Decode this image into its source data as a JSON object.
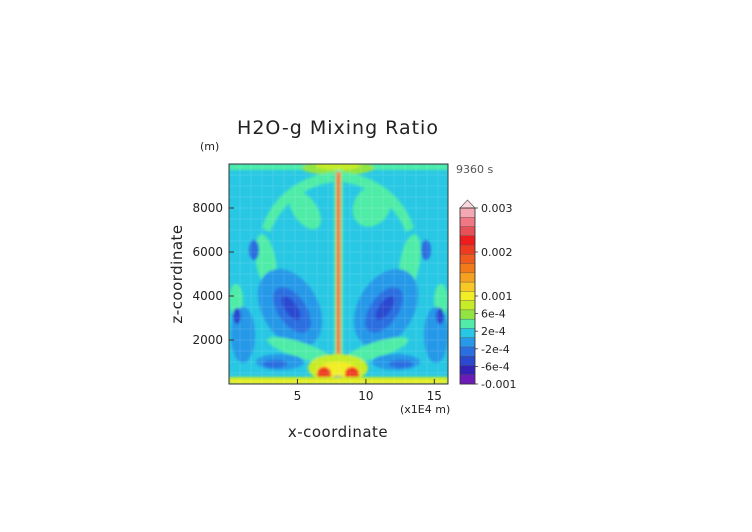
{
  "chart_data": {
    "type": "heatmap",
    "title": "H2O-g Mixing Ratio",
    "time_label": "9360 s",
    "xlabel": "x-coordinate",
    "ylabel": "z-coordinate",
    "x_unit": "(x1E4 m)",
    "y_unit": "(m)",
    "xlim": [
      0,
      16
    ],
    "ylim": [
      0,
      10000
    ],
    "x_ticks": [
      5,
      10,
      15
    ],
    "y_ticks": [
      2000,
      4000,
      6000,
      8000
    ],
    "colorbar": {
      "labels": [
        {
          "text": "0.003",
          "value": 0.003
        },
        {
          "text": "0.002",
          "value": 0.002
        },
        {
          "text": "0.001",
          "value": 0.001
        },
        {
          "text": "6e-4",
          "value": 0.0006
        },
        {
          "text": "2e-4",
          "value": 0.0002
        },
        {
          "text": "-2e-4",
          "value": -0.0002
        },
        {
          "text": "-6e-4",
          "value": -0.0006
        },
        {
          "text": "-0.001",
          "value": -0.001
        }
      ],
      "levels": [
        {
          "color": "#f4a8b4"
        },
        {
          "color": "#f07884"
        },
        {
          "color": "#e85058"
        },
        {
          "color": "#ee1c1c"
        },
        {
          "color": "#ee3a20"
        },
        {
          "color": "#f05a1c"
        },
        {
          "color": "#f27a18"
        },
        {
          "color": "#f6a020"
        },
        {
          "color": "#f8c824"
        },
        {
          "color": "#f2ee26"
        },
        {
          "color": "#c6ec28"
        },
        {
          "color": "#92e440"
        },
        {
          "color": "#50eca8"
        },
        {
          "color": "#28c8e4"
        },
        {
          "color": "#2898e8"
        },
        {
          "color": "#2a6ee0"
        },
        {
          "color": "#2a48d0"
        },
        {
          "color": "#3422b8"
        },
        {
          "color": "#6c1ab8"
        }
      ],
      "extend": "max"
    }
  }
}
